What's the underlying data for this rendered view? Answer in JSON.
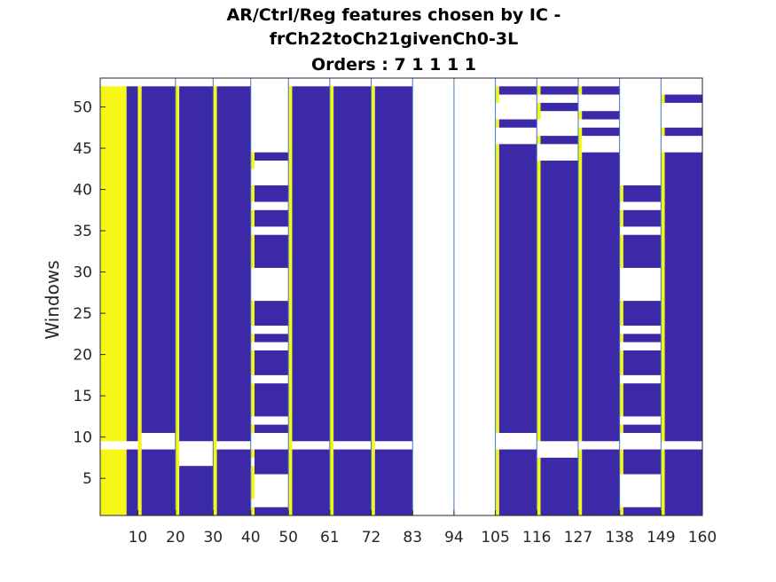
{
  "chart_data": {
    "type": "heatmap",
    "title": [
      "AR/Ctrl/Reg features chosen by IC -",
      "frCh22toCh21givenCh0-3L",
      "Orders : 7 1 1 1 1"
    ],
    "xlabel": "",
    "ylabel": "Windows",
    "x_tick_labels": [
      "10",
      "20",
      "30",
      "40",
      "50",
      "61",
      "72",
      "83",
      "94",
      "105",
      "116",
      "127",
      "138",
      "149",
      "160"
    ],
    "y_ticks": [
      5,
      10,
      15,
      20,
      25,
      30,
      35,
      40,
      45,
      50
    ],
    "x_range": [
      1,
      160
    ],
    "y_range": [
      1,
      53
    ],
    "column_groups": [
      {
        "start": 10,
        "end": 20
      },
      {
        "start": 20,
        "end": 30
      },
      {
        "start": 30,
        "end": 40
      },
      {
        "start": 40,
        "end": 50
      },
      {
        "start": 50,
        "end": 61
      },
      {
        "start": 61,
        "end": 72
      },
      {
        "start": 72,
        "end": 83
      },
      {
        "start": 83,
        "end": 94
      },
      {
        "start": 94,
        "end": 105
      },
      {
        "start": 105,
        "end": 116
      },
      {
        "start": 116,
        "end": 127
      },
      {
        "start": 127,
        "end": 138
      },
      {
        "start": 138,
        "end": 149
      },
      {
        "start": 149,
        "end": 160
      }
    ],
    "colors": {
      "chosen": "#3b29a8",
      "order_feature": "#f7f717",
      "not_chosen": "#ffffff",
      "separator": "#3a78c2",
      "axes": "#262626"
    },
    "cells": [
      {
        "c0": 1,
        "c1": 7,
        "y0": 1,
        "y1": 8,
        "v": "yellow"
      },
      {
        "c0": 1,
        "c1": 7,
        "y0": 10,
        "y1": 52,
        "v": "yellow"
      },
      {
        "c0": 8,
        "c1": 10,
        "y0": 1,
        "y1": 8,
        "v": "blue"
      },
      {
        "c0": 8,
        "c1": 10,
        "y0": 10,
        "y1": 52,
        "v": "blue"
      },
      {
        "c0": 11,
        "c1": 11,
        "y0": 1,
        "y1": 52,
        "v": "yellow"
      },
      {
        "c0": 12,
        "c1": 20,
        "y0": 1,
        "y1": 8,
        "v": "blue"
      },
      {
        "c0": 12,
        "c1": 20,
        "y0": 11,
        "y1": 52,
        "v": "blue"
      },
      {
        "c0": 21,
        "c1": 21,
        "y0": 1,
        "y1": 52,
        "v": "yellow"
      },
      {
        "c0": 22,
        "c1": 30,
        "y0": 1,
        "y1": 6,
        "v": "blue"
      },
      {
        "c0": 22,
        "c1": 30,
        "y0": 10,
        "y1": 52,
        "v": "blue"
      },
      {
        "c0": 31,
        "c1": 31,
        "y0": 1,
        "y1": 52,
        "v": "yellow"
      },
      {
        "c0": 32,
        "c1": 40,
        "y0": 1,
        "y1": 8,
        "v": "blue"
      },
      {
        "c0": 32,
        "c1": 40,
        "y0": 10,
        "y1": 52,
        "v": "blue"
      },
      {
        "c0": 41,
        "c1": 41,
        "y0": 1,
        "y1": 1,
        "v": "yellow"
      },
      {
        "c0": 41,
        "c1": 41,
        "y0": 3,
        "y1": 6,
        "v": "yellow"
      },
      {
        "c0": 41,
        "c1": 41,
        "y0": 8,
        "y1": 8,
        "v": "yellow"
      },
      {
        "c0": 41,
        "c1": 41,
        "y0": 11,
        "y1": 11,
        "v": "yellow"
      },
      {
        "c0": 41,
        "c1": 41,
        "y0": 13,
        "y1": 16,
        "v": "yellow"
      },
      {
        "c0": 41,
        "c1": 41,
        "y0": 18,
        "y1": 20,
        "v": "yellow"
      },
      {
        "c0": 41,
        "c1": 41,
        "y0": 22,
        "y1": 22,
        "v": "yellow"
      },
      {
        "c0": 41,
        "c1": 41,
        "y0": 24,
        "y1": 26,
        "v": "yellow"
      },
      {
        "c0": 41,
        "c1": 41,
        "y0": 31,
        "y1": 34,
        "v": "yellow"
      },
      {
        "c0": 41,
        "c1": 41,
        "y0": 36,
        "y1": 37,
        "v": "yellow"
      },
      {
        "c0": 41,
        "c1": 41,
        "y0": 39,
        "y1": 40,
        "v": "yellow"
      },
      {
        "c0": 41,
        "c1": 41,
        "y0": 43,
        "y1": 44,
        "v": "yellow"
      },
      {
        "c0": 42,
        "c1": 50,
        "y0": 1,
        "y1": 1,
        "v": "blue"
      },
      {
        "c0": 42,
        "c1": 50,
        "y0": 6,
        "y1": 8,
        "v": "blue"
      },
      {
        "c0": 42,
        "c1": 50,
        "y0": 11,
        "y1": 11,
        "v": "blue"
      },
      {
        "c0": 42,
        "c1": 50,
        "y0": 13,
        "y1": 16,
        "v": "blue"
      },
      {
        "c0": 42,
        "c1": 50,
        "y0": 18,
        "y1": 20,
        "v": "blue"
      },
      {
        "c0": 42,
        "c1": 50,
        "y0": 22,
        "y1": 22,
        "v": "blue"
      },
      {
        "c0": 42,
        "c1": 50,
        "y0": 24,
        "y1": 26,
        "v": "blue"
      },
      {
        "c0": 42,
        "c1": 50,
        "y0": 31,
        "y1": 34,
        "v": "blue"
      },
      {
        "c0": 42,
        "c1": 50,
        "y0": 36,
        "y1": 37,
        "v": "blue"
      },
      {
        "c0": 42,
        "c1": 50,
        "y0": 39,
        "y1": 40,
        "v": "blue"
      },
      {
        "c0": 42,
        "c1": 50,
        "y0": 44,
        "y1": 44,
        "v": "blue"
      },
      {
        "c0": 51,
        "c1": 51,
        "y0": 1,
        "y1": 52,
        "v": "yellow"
      },
      {
        "c0": 52,
        "c1": 61,
        "y0": 1,
        "y1": 8,
        "v": "blue"
      },
      {
        "c0": 52,
        "c1": 61,
        "y0": 10,
        "y1": 52,
        "v": "blue"
      },
      {
        "c0": 62,
        "c1": 62,
        "y0": 1,
        "y1": 52,
        "v": "yellow"
      },
      {
        "c0": 63,
        "c1": 72,
        "y0": 1,
        "y1": 8,
        "v": "blue"
      },
      {
        "c0": 63,
        "c1": 72,
        "y0": 10,
        "y1": 52,
        "v": "blue"
      },
      {
        "c0": 73,
        "c1": 73,
        "y0": 1,
        "y1": 52,
        "v": "yellow"
      },
      {
        "c0": 74,
        "c1": 83,
        "y0": 1,
        "y1": 8,
        "v": "blue"
      },
      {
        "c0": 74,
        "c1": 83,
        "y0": 10,
        "y1": 52,
        "v": "blue"
      },
      {
        "c0": 106,
        "c1": 106,
        "y0": 1,
        "y1": 8,
        "v": "yellow"
      },
      {
        "c0": 106,
        "c1": 106,
        "y0": 11,
        "y1": 45,
        "v": "yellow"
      },
      {
        "c0": 106,
        "c1": 106,
        "y0": 48,
        "y1": 48,
        "v": "yellow"
      },
      {
        "c0": 106,
        "c1": 106,
        "y0": 51,
        "y1": 52,
        "v": "yellow"
      },
      {
        "c0": 107,
        "c1": 116,
        "y0": 1,
        "y1": 8,
        "v": "blue"
      },
      {
        "c0": 107,
        "c1": 116,
        "y0": 11,
        "y1": 45,
        "v": "blue"
      },
      {
        "c0": 107,
        "c1": 116,
        "y0": 48,
        "y1": 48,
        "v": "blue"
      },
      {
        "c0": 107,
        "c1": 116,
        "y0": 52,
        "y1": 52,
        "v": "blue"
      },
      {
        "c0": 117,
        "c1": 117,
        "y0": 1,
        "y1": 7,
        "v": "yellow"
      },
      {
        "c0": 117,
        "c1": 117,
        "y0": 10,
        "y1": 43,
        "v": "yellow"
      },
      {
        "c0": 117,
        "c1": 117,
        "y0": 46,
        "y1": 46,
        "v": "yellow"
      },
      {
        "c0": 117,
        "c1": 117,
        "y0": 49,
        "y1": 50,
        "v": "yellow"
      },
      {
        "c0": 117,
        "c1": 117,
        "y0": 52,
        "y1": 52,
        "v": "yellow"
      },
      {
        "c0": 118,
        "c1": 127,
        "y0": 1,
        "y1": 7,
        "v": "blue"
      },
      {
        "c0": 118,
        "c1": 127,
        "y0": 10,
        "y1": 43,
        "v": "blue"
      },
      {
        "c0": 118,
        "c1": 127,
        "y0": 46,
        "y1": 46,
        "v": "blue"
      },
      {
        "c0": 118,
        "c1": 127,
        "y0": 50,
        "y1": 50,
        "v": "blue"
      },
      {
        "c0": 118,
        "c1": 127,
        "y0": 52,
        "y1": 52,
        "v": "blue"
      },
      {
        "c0": 128,
        "c1": 128,
        "y0": 1,
        "y1": 8,
        "v": "yellow"
      },
      {
        "c0": 128,
        "c1": 128,
        "y0": 10,
        "y1": 47,
        "v": "yellow"
      },
      {
        "c0": 128,
        "c1": 128,
        "y0": 49,
        "y1": 49,
        "v": "yellow"
      },
      {
        "c0": 128,
        "c1": 128,
        "y0": 52,
        "y1": 52,
        "v": "yellow"
      },
      {
        "c0": 129,
        "c1": 138,
        "y0": 1,
        "y1": 8,
        "v": "blue"
      },
      {
        "c0": 129,
        "c1": 138,
        "y0": 10,
        "y1": 44,
        "v": "blue"
      },
      {
        "c0": 129,
        "c1": 138,
        "y0": 47,
        "y1": 47,
        "v": "blue"
      },
      {
        "c0": 129,
        "c1": 138,
        "y0": 49,
        "y1": 49,
        "v": "blue"
      },
      {
        "c0": 129,
        "c1": 138,
        "y0": 52,
        "y1": 52,
        "v": "blue"
      },
      {
        "c0": 139,
        "c1": 139,
        "y0": 1,
        "y1": 1,
        "v": "yellow"
      },
      {
        "c0": 139,
        "c1": 139,
        "y0": 6,
        "y1": 8,
        "v": "yellow"
      },
      {
        "c0": 139,
        "c1": 139,
        "y0": 11,
        "y1": 11,
        "v": "yellow"
      },
      {
        "c0": 139,
        "c1": 139,
        "y0": 13,
        "y1": 16,
        "v": "yellow"
      },
      {
        "c0": 139,
        "c1": 139,
        "y0": 18,
        "y1": 20,
        "v": "yellow"
      },
      {
        "c0": 139,
        "c1": 139,
        "y0": 22,
        "y1": 22,
        "v": "yellow"
      },
      {
        "c0": 139,
        "c1": 139,
        "y0": 24,
        "y1": 26,
        "v": "yellow"
      },
      {
        "c0": 139,
        "c1": 139,
        "y0": 31,
        "y1": 34,
        "v": "yellow"
      },
      {
        "c0": 139,
        "c1": 139,
        "y0": 36,
        "y1": 37,
        "v": "yellow"
      },
      {
        "c0": 139,
        "c1": 139,
        "y0": 39,
        "y1": 40,
        "v": "yellow"
      },
      {
        "c0": 140,
        "c1": 149,
        "y0": 1,
        "y1": 1,
        "v": "blue"
      },
      {
        "c0": 140,
        "c1": 149,
        "y0": 6,
        "y1": 8,
        "v": "blue"
      },
      {
        "c0": 140,
        "c1": 149,
        "y0": 11,
        "y1": 11,
        "v": "blue"
      },
      {
        "c0": 140,
        "c1": 149,
        "y0": 13,
        "y1": 16,
        "v": "blue"
      },
      {
        "c0": 140,
        "c1": 149,
        "y0": 18,
        "y1": 20,
        "v": "blue"
      },
      {
        "c0": 140,
        "c1": 149,
        "y0": 22,
        "y1": 22,
        "v": "blue"
      },
      {
        "c0": 140,
        "c1": 149,
        "y0": 24,
        "y1": 26,
        "v": "blue"
      },
      {
        "c0": 140,
        "c1": 149,
        "y0": 31,
        "y1": 34,
        "v": "blue"
      },
      {
        "c0": 140,
        "c1": 149,
        "y0": 36,
        "y1": 37,
        "v": "blue"
      },
      {
        "c0": 140,
        "c1": 149,
        "y0": 39,
        "y1": 40,
        "v": "blue"
      },
      {
        "c0": 150,
        "c1": 150,
        "y0": 1,
        "y1": 8,
        "v": "yellow"
      },
      {
        "c0": 150,
        "c1": 150,
        "y0": 10,
        "y1": 44,
        "v": "yellow"
      },
      {
        "c0": 150,
        "c1": 150,
        "y0": 47,
        "y1": 47,
        "v": "yellow"
      },
      {
        "c0": 150,
        "c1": 150,
        "y0": 51,
        "y1": 51,
        "v": "yellow"
      },
      {
        "c0": 151,
        "c1": 160,
        "y0": 1,
        "y1": 8,
        "v": "blue"
      },
      {
        "c0": 151,
        "c1": 160,
        "y0": 10,
        "y1": 44,
        "v": "blue"
      },
      {
        "c0": 151,
        "c1": 160,
        "y0": 47,
        "y1": 47,
        "v": "blue"
      },
      {
        "c0": 151,
        "c1": 160,
        "y0": 51,
        "y1": 51,
        "v": "blue"
      }
    ]
  }
}
